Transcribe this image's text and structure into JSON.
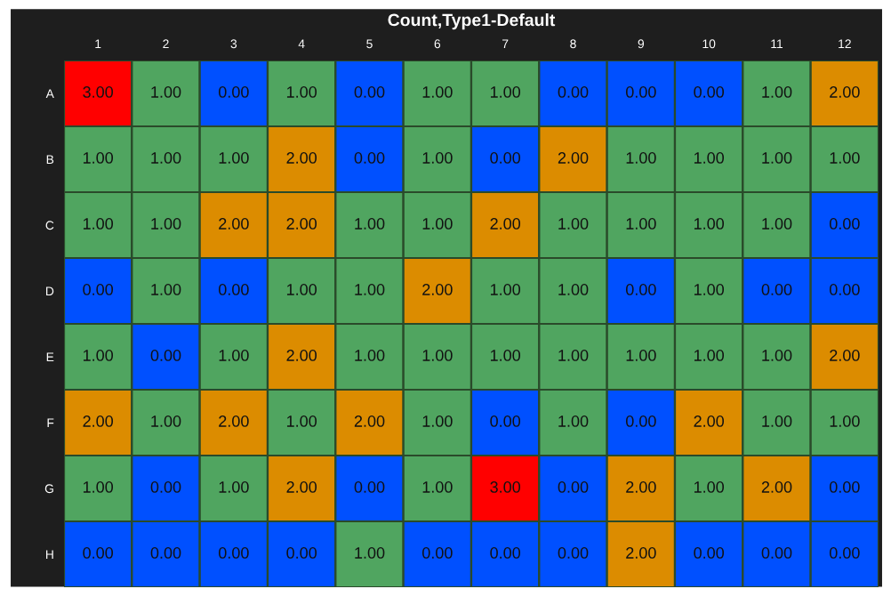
{
  "chart_data": {
    "type": "heatmap",
    "title": "Count,Type1-Default",
    "categories": [
      "1",
      "2",
      "3",
      "4",
      "5",
      "6",
      "7",
      "8",
      "9",
      "10",
      "11",
      "12"
    ],
    "y_categories": [
      "A",
      "B",
      "C",
      "D",
      "E",
      "F",
      "G",
      "H"
    ],
    "colors": [
      "#0050ff",
      "#50a560",
      "#dc8c00",
      "#ff0000"
    ],
    "cells": [
      [
        3,
        1,
        0,
        1,
        0,
        1,
        1,
        0,
        0,
        0,
        1,
        2
      ],
      [
        1,
        1,
        1,
        2,
        0,
        1,
        0,
        2,
        1,
        1,
        1,
        1
      ],
      [
        1,
        1,
        2,
        2,
        1,
        1,
        2,
        1,
        1,
        1,
        1,
        0
      ],
      [
        0,
        1,
        0,
        1,
        1,
        2,
        1,
        1,
        0,
        1,
        0,
        0
      ],
      [
        1,
        0,
        1,
        2,
        1,
        1,
        1,
        1,
        1,
        1,
        1,
        2
      ],
      [
        2,
        1,
        2,
        1,
        2,
        1,
        0,
        1,
        0,
        2,
        1,
        1
      ],
      [
        1,
        0,
        1,
        2,
        0,
        1,
        3,
        0,
        2,
        1,
        2,
        0
      ],
      [
        0,
        0,
        0,
        0,
        1,
        0,
        0,
        0,
        2,
        0,
        0,
        0
      ]
    ],
    "cell_labels": [
      [
        "3.00",
        "1.00",
        "0.00",
        "1.00",
        "0.00",
        "1.00",
        "1.00",
        "0.00",
        "0.00",
        "0.00",
        "1.00",
        "2.00"
      ],
      [
        "1.00",
        "1.00",
        "1.00",
        "2.00",
        "0.00",
        "1.00",
        "0.00",
        "2.00",
        "1.00",
        "1.00",
        "1.00",
        "1.00"
      ],
      [
        "1.00",
        "1.00",
        "2.00",
        "2.00",
        "1.00",
        "1.00",
        "2.00",
        "1.00",
        "1.00",
        "1.00",
        "1.00",
        "0.00"
      ],
      [
        "0.00",
        "1.00",
        "0.00",
        "1.00",
        "1.00",
        "2.00",
        "1.00",
        "1.00",
        "0.00",
        "1.00",
        "0.00",
        "0.00"
      ],
      [
        "1.00",
        "0.00",
        "1.00",
        "2.00",
        "1.00",
        "1.00",
        "1.00",
        "1.00",
        "1.00",
        "1.00",
        "1.00",
        "2.00"
      ],
      [
        "2.00",
        "1.00",
        "2.00",
        "1.00",
        "2.00",
        "1.00",
        "0.00",
        "1.00",
        "0.00",
        "2.00",
        "1.00",
        "1.00"
      ],
      [
        "1.00",
        "0.00",
        "1.00",
        "2.00",
        "0.00",
        "1.00",
        "3.00",
        "0.00",
        "2.00",
        "1.00",
        "2.00",
        "0.00"
      ],
      [
        "0.00",
        "0.00",
        "0.00",
        "0.00",
        "1.00",
        "0.00",
        "0.00",
        "0.00",
        "2.00",
        "0.00",
        "0.00",
        "0.00"
      ]
    ]
  }
}
